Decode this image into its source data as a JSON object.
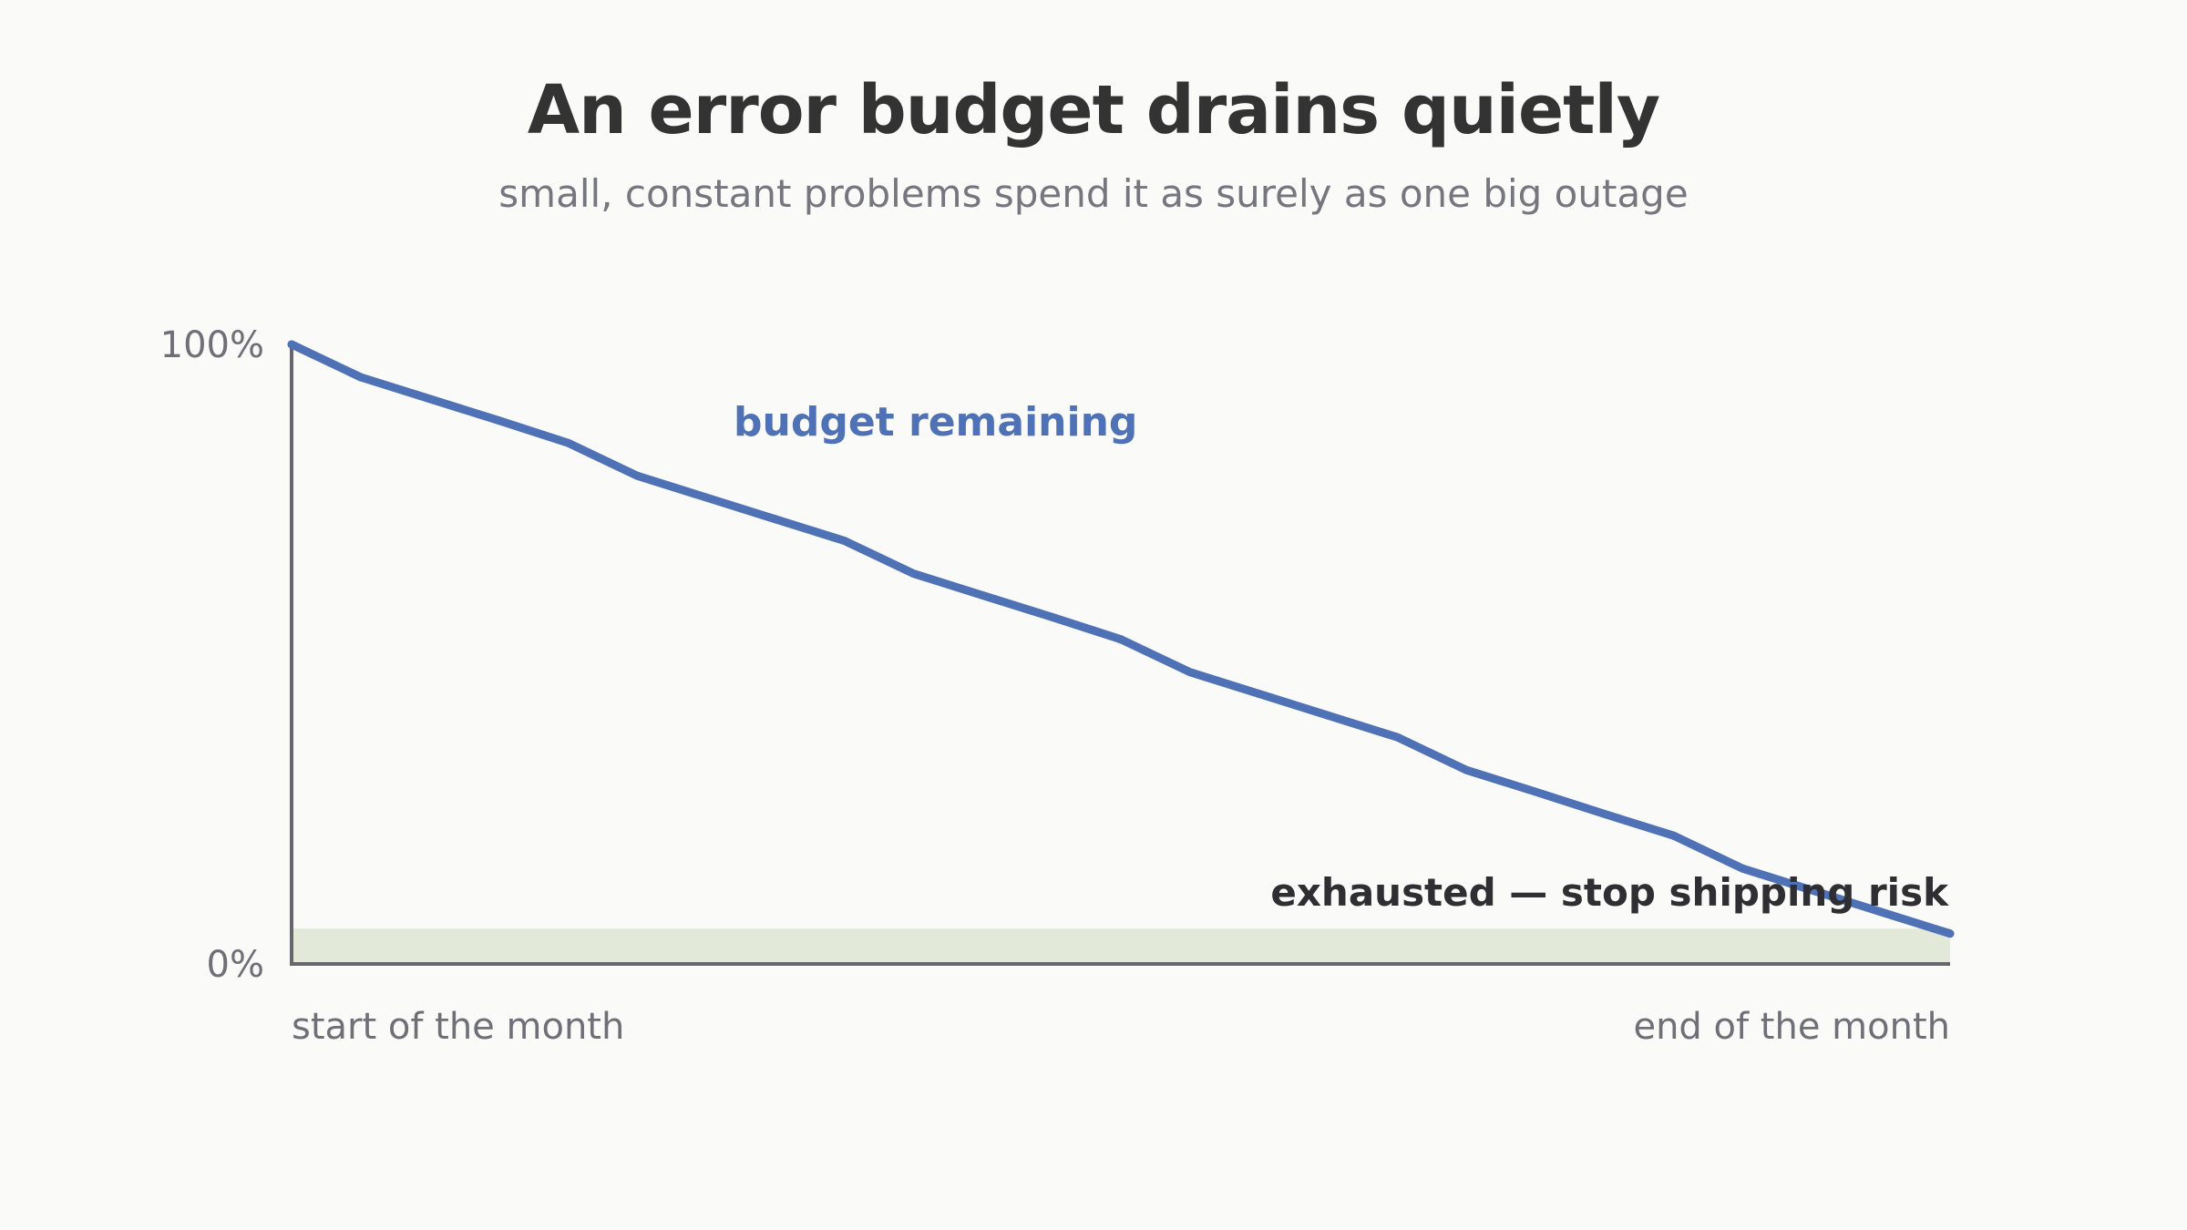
{
  "title": "An error budget drains quietly",
  "subtitle": "small, constant problems spend it as surely as one big outage",
  "colors": {
    "line": "#4f72b6",
    "axis": "#66666c",
    "zone": "#e2e9d8",
    "title": "#333333",
    "muted": "#6f6f78"
  },
  "chart_data": {
    "type": "line",
    "title": "An error budget drains quietly",
    "subtitle": "small, constant problems spend it as surely as one big outage",
    "xlabel": "",
    "ylabel": "",
    "ylim": [
      0,
      100
    ],
    "xlim": [
      0,
      24
    ],
    "y_ticks": [
      {
        "value": 100,
        "label": "100%"
      },
      {
        "value": 0,
        "label": "0%"
      }
    ],
    "x_ticks": [
      {
        "value": 0,
        "label": "start of the month"
      },
      {
        "value": 24,
        "label": "end of the month"
      }
    ],
    "grid": false,
    "series": [
      {
        "label": "budget remaining",
        "x": [
          0,
          1,
          2,
          3,
          4,
          5,
          6,
          7,
          8,
          9,
          10,
          11,
          12,
          13,
          14,
          15,
          16,
          17,
          18,
          19,
          20,
          21,
          22,
          23,
          24
        ],
        "y": [
          100,
          94.7,
          91.2,
          87.7,
          84.1,
          78.8,
          75.3,
          71.8,
          68.3,
          63.0,
          59.5,
          56.0,
          52.4,
          47.1,
          43.6,
          40.1,
          36.6,
          31.3,
          27.8,
          24.2,
          20.7,
          15.4,
          11.9,
          8.4,
          4.9
        ]
      }
    ],
    "zones": [
      {
        "label": "exhausted — stop shipping risk",
        "y_from": 0,
        "y_to": 5.7
      }
    ]
  }
}
